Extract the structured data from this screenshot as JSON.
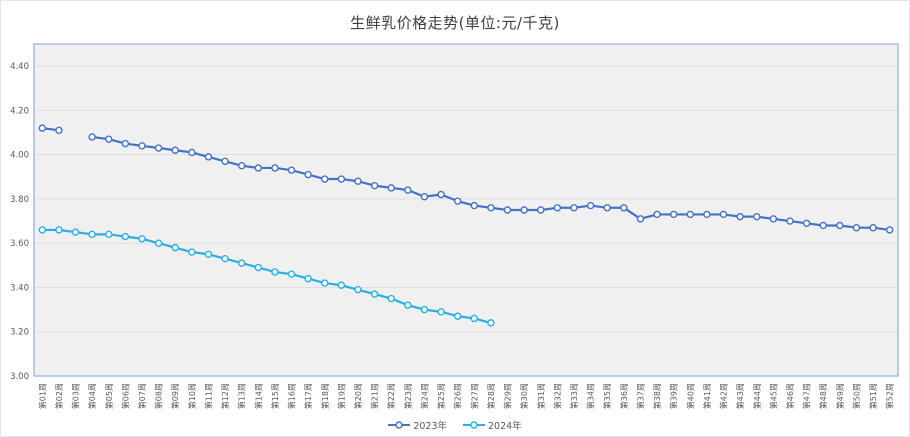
{
  "chart_data": {
    "type": "line",
    "title": "生鲜乳价格走势(单位:元/千克)",
    "categories": [
      "第01周",
      "第02周",
      "第03周",
      "第04周",
      "第05周",
      "第06周",
      "第07周",
      "第08周",
      "第09周",
      "第10周",
      "第11周",
      "第12周",
      "第13周",
      "第14周",
      "第15周",
      "第16周",
      "第17周",
      "第18周",
      "第19周",
      "第20周",
      "第21周",
      "第22周",
      "第23周",
      "第24周",
      "第25周",
      "第26周",
      "第27周",
      "第28周",
      "第29周",
      "第30周",
      "第31周",
      "第32周",
      "第33周",
      "第34周",
      "第35周",
      "第36周",
      "第37周",
      "第38周",
      "第39周",
      "第40周",
      "第41周",
      "第42周",
      "第43周",
      "第44周",
      "第45周",
      "第46周",
      "第47周",
      "第48周",
      "第49周",
      "第50周",
      "第51周",
      "第52周"
    ],
    "series": [
      {
        "name": "2023年",
        "color": "#4472C4",
        "values": [
          4.12,
          4.11,
          null,
          4.08,
          4.07,
          4.05,
          4.04,
          4.03,
          4.02,
          4.01,
          3.99,
          3.97,
          3.95,
          3.94,
          3.94,
          3.93,
          3.91,
          3.89,
          3.89,
          3.88,
          3.86,
          3.85,
          3.84,
          3.81,
          3.82,
          3.79,
          3.77,
          3.76,
          3.75,
          3.75,
          3.75,
          3.76,
          3.76,
          3.77,
          3.76,
          3.76,
          3.71,
          3.73,
          3.73,
          3.73,
          3.73,
          3.73,
          3.72,
          3.72,
          3.71,
          3.7,
          3.69,
          3.68,
          3.68,
          3.67,
          3.67,
          3.66
        ]
      },
      {
        "name": "2024年",
        "color": "#2AAFE5",
        "values": [
          3.66,
          3.66,
          3.65,
          3.64,
          3.64,
          3.63,
          3.62,
          3.6,
          3.58,
          3.56,
          3.55,
          3.53,
          3.51,
          3.49,
          3.47,
          3.46,
          3.44,
          3.42,
          3.41,
          3.39,
          3.37,
          3.35,
          3.32,
          3.3,
          3.29,
          3.27,
          3.26,
          3.24
        ]
      }
    ],
    "yticks": [
      "3.00",
      "3.20",
      "3.40",
      "3.60",
      "3.80",
      "4.00",
      "4.20",
      "4.40"
    ],
    "ylim": [
      3.0,
      4.5
    ],
    "grid": true,
    "legend_position": "bottom",
    "colors": {
      "plot_fill": "#F0F0F0",
      "plot_border": "#9CB4DB",
      "gridline": "#DEDEDE",
      "tick_label": "#595959",
      "title_text": "#3F3F3F"
    }
  }
}
